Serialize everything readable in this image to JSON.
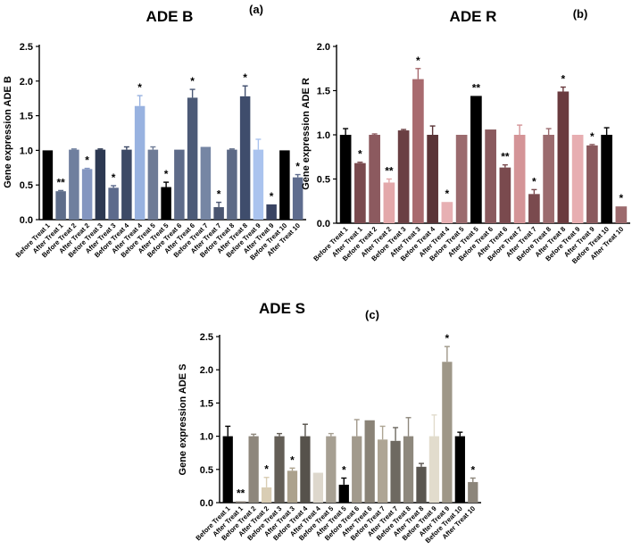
{
  "chart_data": [
    {
      "type": "bar",
      "panel_label": "(a)",
      "title": "ADE B",
      "ylabel": "Gene expression ADE B",
      "xlabel": "",
      "ylim": [
        0,
        2.5
      ],
      "yticks": [
        0,
        0.5,
        1.0,
        1.5,
        2.0,
        2.5
      ],
      "ytick_labels": [
        "0.0",
        "0.5",
        "1.0",
        "1.5",
        "2.0",
        "2.5"
      ],
      "categories": [
        "Before Treat 1",
        "After Treat 1",
        "Before Treat 2",
        "After Treat 2",
        "Before Treat 3",
        "After Treat 3",
        "Before Treat 4",
        "After Treat 4",
        "Before Treat 5",
        "After Treat 5",
        "Before Treat 6",
        "After Treat 6",
        "Before Treat 7",
        "After Treat 7",
        "Before Treat 8",
        "After Treat 8",
        "Before Treat 9",
        "After Treat 9",
        "Before Treat 10",
        "After Treat 10"
      ],
      "values": [
        1.0,
        0.41,
        1.01,
        0.73,
        1.01,
        0.46,
        1.01,
        1.64,
        1.01,
        0.47,
        1.01,
        1.76,
        1.05,
        0.18,
        1.01,
        1.78,
        1.01,
        0.22,
        1.0,
        0.61
      ],
      "errors": [
        0,
        0.01,
        0.01,
        0.01,
        0.01,
        0.03,
        0.04,
        0.15,
        0.04,
        0.07,
        0,
        0.12,
        0,
        0.07,
        0.01,
        0.15,
        0.15,
        0,
        0,
        0.04
      ],
      "significance": [
        "",
        "**",
        "",
        "*",
        "",
        "*",
        "",
        "*",
        "",
        "*",
        "",
        "*",
        "",
        "*",
        "",
        "*",
        "",
        "*",
        "",
        "*"
      ],
      "colors": [
        "#000000",
        "#5e6d8a",
        "#6f7f9e",
        "#8496c0",
        "#2d3952",
        "#5c6a8c",
        "#3d4a66",
        "#98b2e0",
        "#6e7b96",
        "#000000",
        "#5e6b89",
        "#4c5a77",
        "#7686a4",
        "#4a5570",
        "#5d6a86",
        "#3f4d6c",
        "#aac3ee",
        "#3a4463",
        "#000000",
        "#5e6c8e"
      ]
    },
    {
      "type": "bar",
      "panel_label": "(b)",
      "title": "ADE R",
      "ylabel": "Gene expression ADE R",
      "xlabel": "",
      "ylim": [
        0,
        2.0
      ],
      "yticks": [
        0,
        0.5,
        1.0,
        1.5,
        2.0
      ],
      "ytick_labels": [
        "0.0",
        "0.5",
        "1.0",
        "1.5",
        "2.0"
      ],
      "categories": [
        "Before Treat 1",
        "After Treat 1",
        "Before Treat 2",
        "After Treat 2",
        "Before Treat 3",
        "After Treat 3",
        "Before Treat 4",
        "After Treat 4",
        "Before Treat 5",
        "After Treat 5",
        "Before Treat 6",
        "After Treat 6",
        "Before Treat 7",
        "After Treat 7",
        "Before Treat 8",
        "After Treat 8",
        "Before Treat 9",
        "After Treat 9",
        "Before Treat 10",
        "After Treat 10"
      ],
      "values": [
        1.0,
        0.68,
        1.0,
        0.46,
        1.05,
        1.63,
        1.0,
        0.24,
        1.0,
        1.44,
        1.06,
        0.63,
        1.0,
        0.33,
        1.0,
        1.49,
        1.0,
        0.88,
        1.0,
        0.19
      ],
      "errors": [
        0.07,
        0.01,
        0.01,
        0.04,
        0.01,
        0.12,
        0.1,
        0,
        0,
        0,
        0,
        0.03,
        0.11,
        0.05,
        0.07,
        0.05,
        0,
        0.01,
        0.08,
        0
      ],
      "significance": [
        "",
        "*",
        "",
        "**",
        "",
        "*",
        "",
        "*",
        "",
        "**",
        "",
        "**",
        "",
        "*",
        "",
        "*",
        "",
        "*",
        "",
        "*"
      ],
      "colors": [
        "#000000",
        "#7a4a4e",
        "#8c5a5f",
        "#e3a8aa",
        "#6a3f43",
        "#a86a6e",
        "#5a3437",
        "#e7b0b3",
        "#9b6b6e",
        "#000000",
        "#8a5a5e",
        "#7a4a4e",
        "#d49497",
        "#7a4a4e",
        "#9b6b6e",
        "#6a3a3e",
        "#e7aeb1",
        "#8a5a5e",
        "#000000",
        "#9c6a6d"
      ]
    },
    {
      "type": "bar",
      "panel_label": "(c)",
      "title": "ADE S",
      "ylabel": "Gene expression ADE S",
      "xlabel": "",
      "ylim": [
        0,
        2.5
      ],
      "yticks": [
        0,
        0.5,
        1.0,
        1.5,
        2.0,
        2.5
      ],
      "ytick_labels": [
        "0.0",
        "0.5",
        "1.0",
        "1.5",
        "2.0",
        "2.5"
      ],
      "categories": [
        "Before Treat 1",
        "After Treat 1",
        "Before Treat 2",
        "After Treat 2",
        "Before Treat 3",
        "After Treat 3",
        "Before Treat 4",
        "After Treat 4",
        "Before Treat 5",
        "After Treat 5",
        "Before Treat 6",
        "After Treat 6",
        "Before Treat 7",
        "After Treat 7",
        "Before Treat 8",
        "After Treat 8",
        "Before Treat 9",
        "After Treat 9",
        "Before Treat 10",
        "After Treat 10"
      ],
      "values": [
        1.0,
        0.02,
        1.0,
        0.23,
        1.0,
        0.48,
        1.0,
        0.45,
        1.0,
        0.27,
        1.0,
        1.24,
        0.95,
        0.93,
        1.0,
        0.54,
        1.0,
        2.12,
        1.0,
        0.31
      ],
      "errors": [
        0.15,
        0,
        0.03,
        0.15,
        0.04,
        0.04,
        0.18,
        0,
        0.04,
        0.1,
        0.25,
        0,
        0.2,
        0.2,
        0.28,
        0.05,
        0.32,
        0.23,
        0.06,
        0.06
      ],
      "significance": [
        "",
        "**",
        "",
        "*",
        "",
        "*",
        "",
        "",
        "",
        "*",
        "",
        "",
        "",
        "",
        "",
        "",
        "",
        "*",
        "",
        "*"
      ],
      "colors": [
        "#000000",
        "#8a8278",
        "#8e877c",
        "#d9cdb4",
        "#645f57",
        "#aca28d",
        "#56524b",
        "#ddd7cc",
        "#a69f92",
        "#000000",
        "#a29a8c",
        "#8a8377",
        "#aea594",
        "#6e6961",
        "#8e887d",
        "#5a5650",
        "#e2dccd",
        "#9e9788",
        "#000000",
        "#8c857a"
      ]
    }
  ]
}
